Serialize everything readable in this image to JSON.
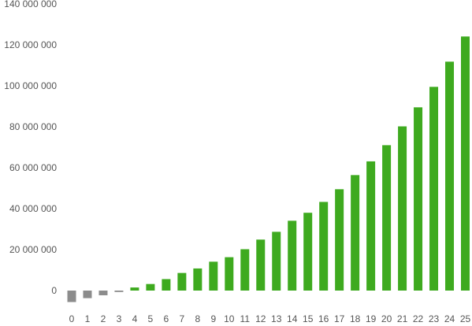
{
  "chart_data": {
    "type": "bar",
    "title": "",
    "xlabel": "",
    "ylabel": "",
    "ylim": [
      -10000000,
      140000000
    ],
    "y_ticks": [
      0,
      20000000,
      40000000,
      60000000,
      80000000,
      100000000,
      120000000,
      140000000
    ],
    "y_tick_labels": [
      "0",
      "20 000 000",
      "40 000 000",
      "60 000 000",
      "80 000 000",
      "100 000 000",
      "120 000 000",
      "140 000 000"
    ],
    "categories": [
      "0",
      "1",
      "2",
      "3",
      "4",
      "5",
      "6",
      "7",
      "8",
      "9",
      "10",
      "11",
      "12",
      "13",
      "14",
      "15",
      "16",
      "17",
      "18",
      "19",
      "20",
      "21",
      "22",
      "23",
      "24",
      "25"
    ],
    "values": [
      -5600000,
      -3700000,
      -2300000,
      -700000,
      1500000,
      3200000,
      5600000,
      8600000,
      10800000,
      14100000,
      16300000,
      20200000,
      24900000,
      28700000,
      34100000,
      38000000,
      43300000,
      49500000,
      56400000,
      63100000,
      71000000,
      80200000,
      89500000,
      99500000,
      111800000,
      124100000
    ],
    "grid": false,
    "legend": "none",
    "colors": {
      "positive": "#3eaa1f",
      "negative": "#8c8c8c",
      "axis_text": "#555555"
    }
  }
}
